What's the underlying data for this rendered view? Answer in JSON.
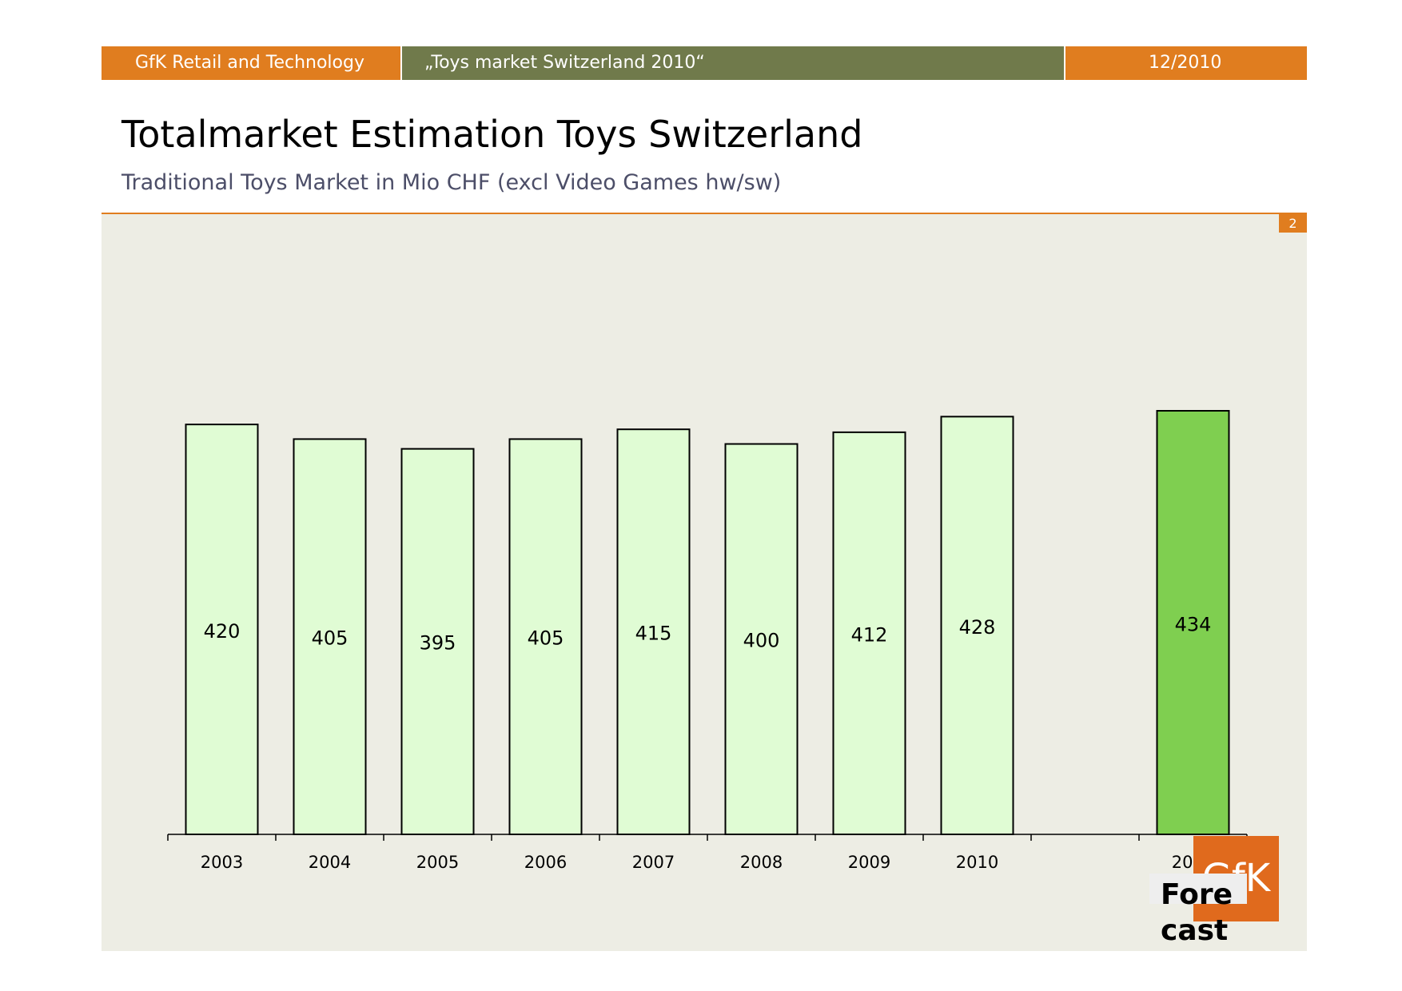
{
  "header": {
    "left": "GfK Retail and Technology",
    "middle": "„Toys market Switzerland 2010“",
    "right": "12/2010"
  },
  "title": "Totalmarket Estimation Toys Switzerland",
  "subtitle": "Traditional Toys Market in Mio CHF (excl Video Games hw/sw)",
  "page_number": "2",
  "logo_text": "GfK",
  "forecast_label": "Fore cast",
  "colors": {
    "header_orange": "#e07d1f",
    "header_olive": "#707a4b",
    "bar_historic": "#e0fcd4",
    "bar_forecast": "#7fcf50",
    "background": "#edede4"
  },
  "chart_data": {
    "type": "bar",
    "title": "Totalmarket Estimation Toys Switzerland",
    "subtitle": "Traditional Toys Market in Mio CHF (excl Video Games hw/sw)",
    "xlabel": "",
    "ylabel": "",
    "categories": [
      "2003",
      "2004",
      "2005",
      "2006",
      "2007",
      "2008",
      "2009",
      "2010",
      "",
      "2011"
    ],
    "values": [
      420,
      405,
      395,
      405,
      415,
      400,
      412,
      428,
      null,
      434
    ],
    "forecast": [
      false,
      false,
      false,
      false,
      false,
      false,
      false,
      false,
      false,
      true
    ],
    "ylim": [
      0,
      470
    ],
    "grid": false,
    "legend": "none"
  }
}
